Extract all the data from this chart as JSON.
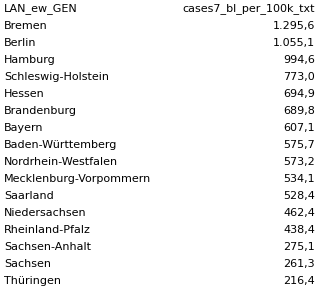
{
  "header_left": "LAN_ew_GEN",
  "header_right": "cases7_bl_per_100k_txt",
  "rows": [
    [
      "Bremen",
      "1.295,6"
    ],
    [
      "Berlin",
      "1.055,1"
    ],
    [
      "Hamburg",
      "994,6"
    ],
    [
      "Schleswig-Holstein",
      "773,0"
    ],
    [
      "Hessen",
      "694,9"
    ],
    [
      "Brandenburg",
      "689,8"
    ],
    [
      "Bayern",
      "607,1"
    ],
    [
      "Baden-Württemberg",
      "575,7"
    ],
    [
      "Nordrhein-Westfalen",
      "573,2"
    ],
    [
      "Mecklenburg-Vorpommern",
      "534,1"
    ],
    [
      "Saarland",
      "528,4"
    ],
    [
      "Niedersachsen",
      "462,4"
    ],
    [
      "Rheinland-Pfalz",
      "438,4"
    ],
    [
      "Sachsen-Anhalt",
      "275,1"
    ],
    [
      "Sachsen",
      "261,3"
    ],
    [
      "Thüringen",
      "216,4"
    ]
  ],
  "background_color": "#ffffff",
  "text_color": "#000000",
  "font_size": 8.0,
  "header_font_size": 8.0,
  "fig_width": 3.19,
  "fig_height": 2.9,
  "dpi": 100
}
